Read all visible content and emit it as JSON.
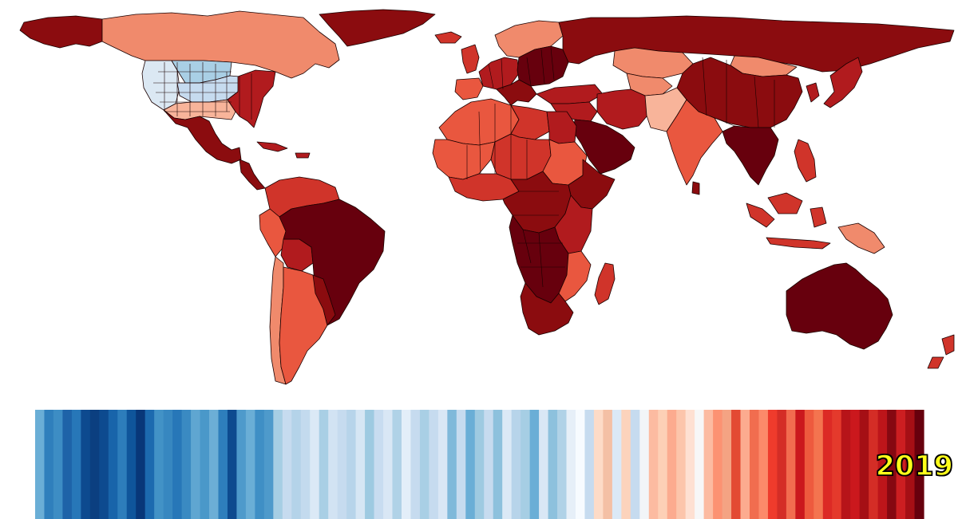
{
  "year": "2019",
  "colors": {
    "background": "#ffffff",
    "year_text": "#ffff1a",
    "year_outline": "#000000",
    "border": "#1a0000",
    "darkest_red": "#67000d",
    "dark_red": "#8b0c0f",
    "red": "#b11b1e",
    "medium_red": "#d0342a",
    "light_red": "#e9573f",
    "salmon": "#f08a6c",
    "pale_salmon": "#f8b49a",
    "pale_blue": "#dbe8f3",
    "light_blue": "#a9cfe5",
    "blue": "#6aaed6"
  },
  "stripes": [
    "#6aaed6",
    "#2f7fbc",
    "#3d8dc4",
    "#1e63a8",
    "#2777b8",
    "#0d4a8f",
    "#0b3f80",
    "#0d4a8f",
    "#1864aa",
    "#2d7dbb",
    "#0f559b",
    "#083779",
    "#1c6aaf",
    "#4292c6",
    "#3787c0",
    "#2777b8",
    "#3a8ac2",
    "#5fa6d1",
    "#4a98c9",
    "#6caed6",
    "#2e7ebc",
    "#0d4a8f",
    "#4e9acb",
    "#6aaed6",
    "#3f8fc5",
    "#4e9acb",
    "#a6cee4",
    "#c6dbef",
    "#b4d3e9",
    "#c3daee",
    "#dbe9f6",
    "#a9cfe5",
    "#d2e3f3",
    "#c6dbef",
    "#b7d4ea",
    "#d6e6f4",
    "#9ecae1",
    "#c8dcf0",
    "#d9e7f5",
    "#b0d2e7",
    "#e3eef9",
    "#c6dbef",
    "#a9cfe5",
    "#c6dbef",
    "#d9e7f5",
    "#7fb9da",
    "#c6dbef",
    "#6aaed6",
    "#9ecae1",
    "#c6dbef",
    "#8dc1dd",
    "#dbe9f6",
    "#b7d4ea",
    "#a6cee4",
    "#6aaed6",
    "#d9e7f5",
    "#8dc1dd",
    "#b0d2e7",
    "#e6eff8",
    "#f7fbff",
    "#c6dbef",
    "#fddbc7",
    "#f4c0a5",
    "#dbe9f6",
    "#fcd3bc",
    "#c6dbef",
    "#f2f5f8",
    "#fcbba1",
    "#fdd0b6",
    "#fcab8f",
    "#fcc5ab",
    "#fee0d2",
    "#f7f7f7",
    "#fcbba1",
    "#fc9272",
    "#f4a383",
    "#e34a33",
    "#fcab8f",
    "#f16d4f",
    "#fc8a6a",
    "#ef3b2c",
    "#d42d26",
    "#f26c4f",
    "#cb181d",
    "#ee5a3e",
    "#f4744f",
    "#dc2a25",
    "#e43a2c",
    "#b71419",
    "#cb181d",
    "#a50f15",
    "#d42d26",
    "#bd151a",
    "#860811",
    "#cc1e21",
    "#a50f15",
    "#67000d"
  ],
  "regions": [
    {
      "id": "alaska",
      "color": "#8b0c0f"
    },
    {
      "id": "canada",
      "color": "#f08a6c"
    },
    {
      "id": "greenland",
      "color": "#8b0c0f"
    },
    {
      "id": "usa-west",
      "color": "#dbe8f3"
    },
    {
      "id": "usa-plains",
      "color": "#a9cfe5"
    },
    {
      "id": "usa-midwest",
      "color": "#c6dbef"
    },
    {
      "id": "usa-south",
      "color": "#f8b49a"
    },
    {
      "id": "usa-east",
      "color": "#b11b1e"
    },
    {
      "id": "mexico",
      "color": "#8b0c0f"
    },
    {
      "id": "central-america",
      "color": "#8b0c0f"
    },
    {
      "id": "caribbean",
      "color": "#b11b1e"
    },
    {
      "id": "colombia-venezuela",
      "color": "#d0342a"
    },
    {
      "id": "peru",
      "color": "#e9573f"
    },
    {
      "id": "bolivia",
      "color": "#b11b1e"
    },
    {
      "id": "brazil",
      "color": "#67000d"
    },
    {
      "id": "chile",
      "color": "#f08a6c"
    },
    {
      "id": "argentina",
      "color": "#e9573f"
    },
    {
      "id": "paraguay-uruguay",
      "color": "#8b0c0f"
    },
    {
      "id": "iceland",
      "color": "#d0342a"
    },
    {
      "id": "scandinavia",
      "color": "#f08a6c"
    },
    {
      "id": "uk-ireland",
      "color": "#d0342a"
    },
    {
      "id": "western-europe",
      "color": "#b11b1e"
    },
    {
      "id": "eastern-europe",
      "color": "#67000d"
    },
    {
      "id": "iberia",
      "color": "#e9573f"
    },
    {
      "id": "italy-balkans",
      "color": "#8b0c0f"
    },
    {
      "id": "russia",
      "color": "#8b0c0f"
    },
    {
      "id": "turkey-caucasus",
      "color": "#b11b1e"
    },
    {
      "id": "kazakhstan",
      "color": "#f08a6c"
    },
    {
      "id": "central-asia",
      "color": "#f08a6c"
    },
    {
      "id": "mongolia",
      "color": "#f08a6c"
    },
    {
      "id": "china",
      "color": "#8b0c0f"
    },
    {
      "id": "middle-east",
      "color": "#b11b1e"
    },
    {
      "id": "arabia",
      "color": "#67000d"
    },
    {
      "id": "iran",
      "color": "#b11b1e"
    },
    {
      "id": "afghanistan-pakistan",
      "color": "#f8b49a"
    },
    {
      "id": "india",
      "color": "#e9573f"
    },
    {
      "id": "sri-lanka",
      "color": "#8b0c0f"
    },
    {
      "id": "southeast-asia",
      "color": "#67000d"
    },
    {
      "id": "indonesia",
      "color": "#d0342a"
    },
    {
      "id": "philippines",
      "color": "#d0342a"
    },
    {
      "id": "korea-japan",
      "color": "#b11b1e"
    },
    {
      "id": "papua",
      "color": "#f08a6c"
    },
    {
      "id": "australia",
      "color": "#67000d"
    },
    {
      "id": "new-zealand",
      "color": "#d0342a"
    },
    {
      "id": "maghreb",
      "color": "#e9573f"
    },
    {
      "id": "libya",
      "color": "#d0342a"
    },
    {
      "id": "egypt",
      "color": "#b11b1e"
    },
    {
      "id": "sahel-west",
      "color": "#e9573f"
    },
    {
      "id": "sahel-central",
      "color": "#d0342a"
    },
    {
      "id": "sudan",
      "color": "#e9573f"
    },
    {
      "id": "horn-of-africa",
      "color": "#8b0c0f"
    },
    {
      "id": "west-africa-coast",
      "color": "#d0342a"
    },
    {
      "id": "central-africa",
      "color": "#8b0c0f"
    },
    {
      "id": "east-africa",
      "color": "#b11b1e"
    },
    {
      "id": "southern-africa",
      "color": "#67000d"
    },
    {
      "id": "mozambique",
      "color": "#e9573f"
    },
    {
      "id": "madagascar",
      "color": "#d0342a"
    },
    {
      "id": "south-africa",
      "color": "#8b0c0f"
    }
  ]
}
